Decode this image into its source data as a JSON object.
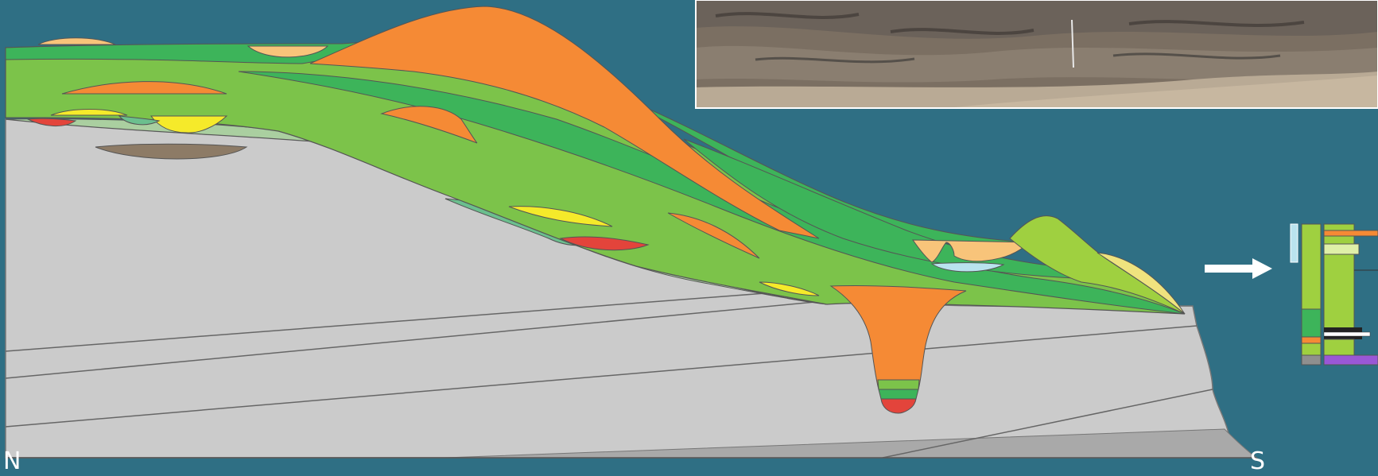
{
  "labels": {
    "north": "N",
    "south": "S"
  },
  "colors": {
    "background": "#2f6f84",
    "bedrock": "#cbcbcb",
    "bedrock_shadow": "#a9a9a9",
    "dark_green": "#3db45a",
    "mid_green": "#7cc34a",
    "light_green": "#9fd040",
    "pale_green": "#aacfa0",
    "teal_green": "#6bbf8e",
    "orange": "#f58a35",
    "tan": "#f8c47a",
    "yellow": "#f5ea2a",
    "pale_yellow": "#efe37e",
    "red": "#e3443b",
    "brown": "#8d7b66",
    "light_blue": "#b9e3ee",
    "purple": "#9a57d6",
    "gray": "#8f8f8f",
    "white": "#ffffff"
  },
  "icons": {
    "arrow": "right-arrow-icon"
  }
}
